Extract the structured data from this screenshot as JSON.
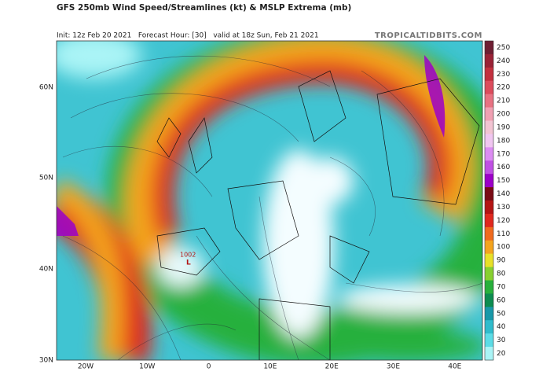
{
  "header": {
    "title": "GFS 250mb Wind Speed/Streamlines (kt) & MSLP Extrema (mb)",
    "subtitle": "Init: 12z Feb 20 2021   Forecast Hour: [30]   valid at 18z Sun, Feb 21 2021",
    "source": "TROPICALTIDBITS.COM"
  },
  "map": {
    "latitudes": [
      "60N",
      "50N",
      "40N",
      "30N"
    ],
    "longitudes": [
      "20W",
      "10W",
      "0",
      "10E",
      "20E",
      "30E",
      "40E"
    ],
    "pressure_label": {
      "value": "1002",
      "symbol": "L"
    }
  },
  "colorbar": {
    "levels": [
      {
        "value": 250,
        "color": "#6e1e32"
      },
      {
        "value": 240,
        "color": "#9a2236"
      },
      {
        "value": 230,
        "color": "#c2303e"
      },
      {
        "value": 220,
        "color": "#dc4c5c"
      },
      {
        "value": 210,
        "color": "#e87282"
      },
      {
        "value": 200,
        "color": "#f0a0b2"
      },
      {
        "value": 190,
        "color": "#f2c4d2"
      },
      {
        "value": 180,
        "color": "#f0c6f0"
      },
      {
        "value": 170,
        "color": "#dc8cf2"
      },
      {
        "value": 160,
        "color": "#c050e4"
      },
      {
        "value": 150,
        "color": "#9c00c8"
      },
      {
        "value": 140,
        "color": "#7a0a14"
      },
      {
        "value": 130,
        "color": "#b41414"
      },
      {
        "value": 120,
        "color": "#e0281e"
      },
      {
        "value": 110,
        "color": "#f06a1e"
      },
      {
        "value": 100,
        "color": "#f4a41e"
      },
      {
        "value": 90,
        "color": "#e8e028"
      },
      {
        "value": 80,
        "color": "#88d030"
      },
      {
        "value": 70,
        "color": "#28b03c"
      },
      {
        "value": 60,
        "color": "#0c8c50"
      },
      {
        "value": 50,
        "color": "#1898a8"
      },
      {
        "value": 40,
        "color": "#30bccc"
      },
      {
        "value": 30,
        "color": "#5cdce6"
      },
      {
        "value": 20,
        "color": "#aaf4f6"
      }
    ]
  }
}
